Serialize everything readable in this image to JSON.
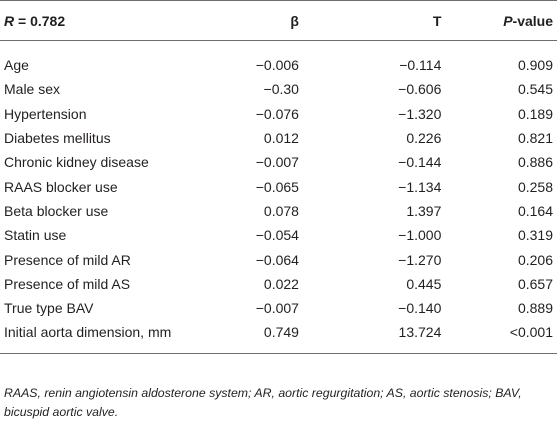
{
  "header": [
    [
      "R",
      " = 0.782"
    ],
    [
      "β"
    ],
    [
      "T"
    ],
    [
      "P",
      "-value"
    ]
  ],
  "rows": [
    [
      "Age",
      "−0.006",
      "−0.114",
      "0.909"
    ],
    [
      "Male sex",
      "−0.30",
      "−0.606",
      "0.545"
    ],
    [
      "Hypertension",
      "−0.076",
      "−1.320",
      "0.189"
    ],
    [
      "Diabetes mellitus",
      "0.012",
      "0.226",
      "0.821"
    ],
    [
      "Chronic kidney disease",
      "−0.007",
      "−0.144",
      "0.886"
    ],
    [
      "RAAS blocker use",
      "−0.065",
      "−1.134",
      "0.258"
    ],
    [
      "Beta blocker use",
      "0.078",
      "1.397",
      "0.164"
    ],
    [
      "Statin use",
      "−0.054",
      "−1.000",
      "0.319"
    ],
    [
      "Presence of mild AR",
      "−0.064",
      "−1.270",
      "0.206"
    ],
    [
      "Presence of mild AS",
      "0.022",
      "0.445",
      "0.657"
    ],
    [
      "True type BAV",
      "−0.007",
      "−0.140",
      "0.889"
    ],
    [
      "Initial aorta dimension, mm",
      "0.749",
      "13.724",
      "<0.001"
    ]
  ],
  "footnote": "RAAS, renin angiotensin aldosterone system; AR, aortic regurgitation; AS, aortic stenosis; BAV, bicuspid aortic valve."
}
